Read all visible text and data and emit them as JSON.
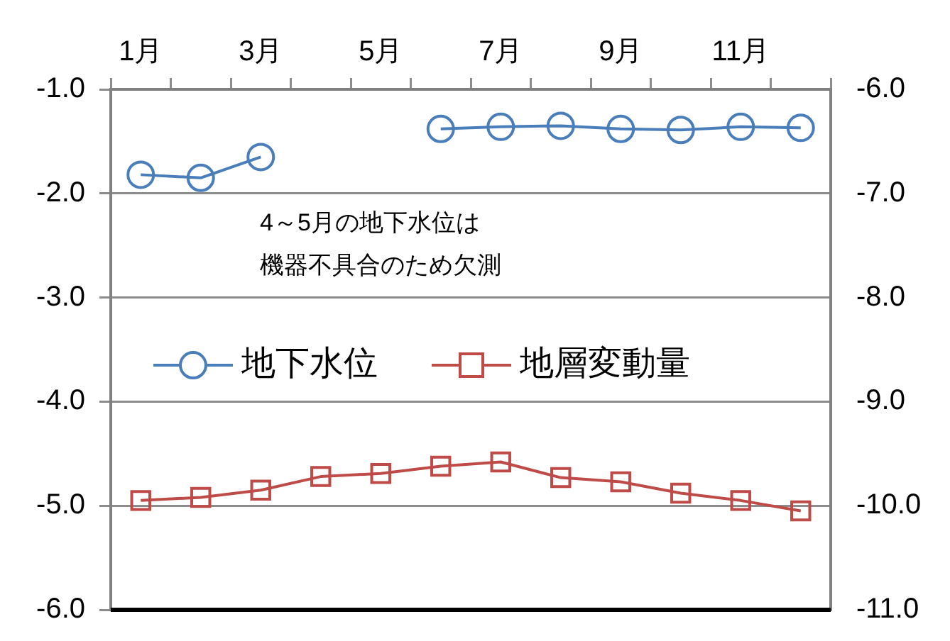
{
  "chart_data": {
    "type": "line",
    "categories": [
      "1月",
      null,
      "3月",
      null,
      "5月",
      null,
      "7月",
      null,
      "9月",
      null,
      "11月",
      null
    ],
    "series": [
      {
        "name": "地下水位",
        "color": "#4a7ebb",
        "values": [
          -1.82,
          -1.85,
          -1.65,
          null,
          null,
          -1.38,
          -1.36,
          -1.35,
          -1.38,
          -1.39,
          -1.36,
          -1.37
        ]
      },
      {
        "name": "地層変動量",
        "color": "#be4b48",
        "axis": "y2",
        "marker": "square",
        "values": [
          -9.95,
          -9.92,
          -9.85,
          -9.72,
          -9.69,
          -9.62,
          -9.58,
          -9.73,
          -9.77,
          -9.88,
          -9.95,
          -10.05
        ]
      }
    ],
    "marker": "circle",
    "ylim": [
      -6,
      -1
    ],
    "yticks": [
      {
        "value": -6,
        "label": "-6.0"
      },
      {
        "value": -5,
        "label": "-5.0"
      },
      {
        "value": -4,
        "label": "-4.0"
      },
      {
        "value": -3,
        "label": "-3.0"
      },
      {
        "value": -2,
        "label": "-2.0"
      },
      {
        "value": -1,
        "label": "-1.0"
      }
    ],
    "y2lim": [
      -11,
      -6
    ],
    "y2ticks": [
      {
        "value": -11,
        "label": "-11.0"
      },
      {
        "value": -10,
        "label": "-10.0"
      },
      {
        "value": -9,
        "label": "-9.0"
      },
      {
        "value": -8,
        "label": "-8.0"
      },
      {
        "value": -7,
        "label": "-7.0"
      },
      {
        "value": -6,
        "label": "-6.0"
      }
    ],
    "grid": "y",
    "legend": "left",
    "annotations": [
      "4～5月の地下水位は",
      "機器不具合のため欠測"
    ]
  }
}
